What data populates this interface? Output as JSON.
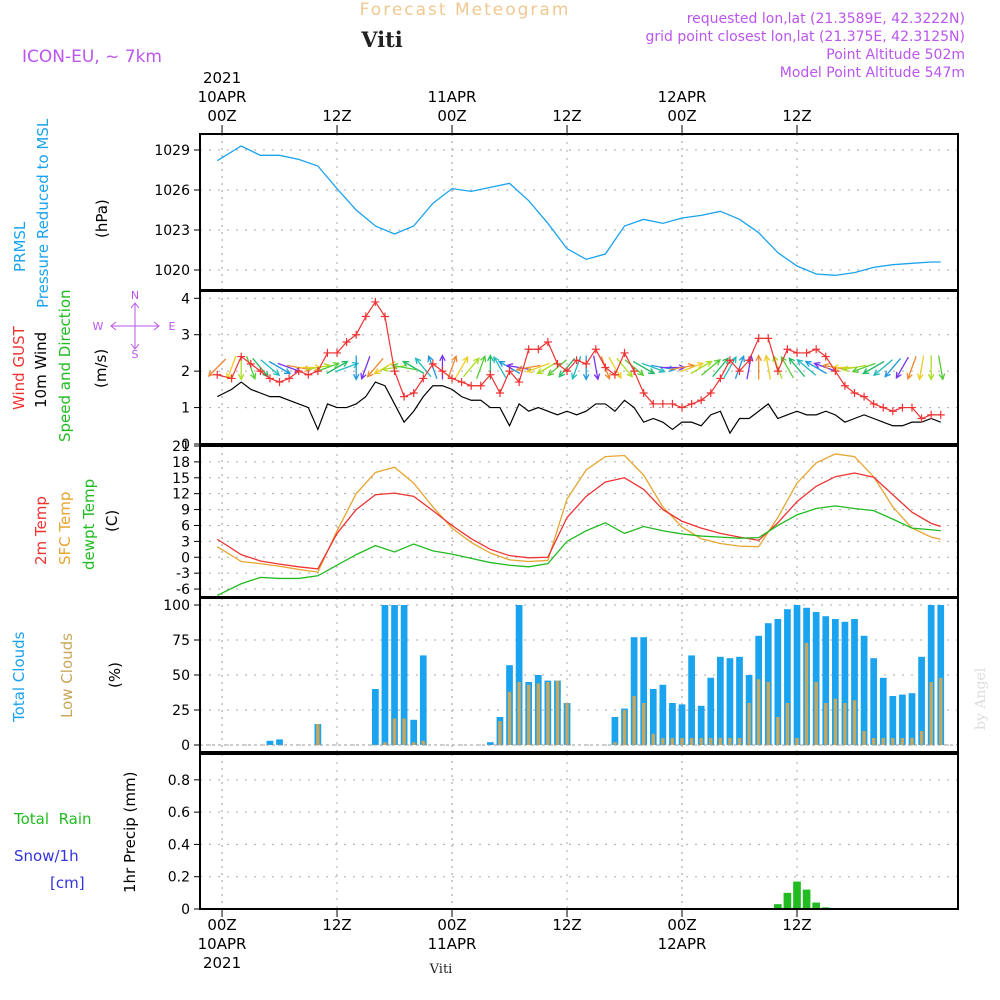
{
  "header": {
    "main_title": "Forecast Meteogram",
    "location": "Viti",
    "model": "ICON-EU, ~ 7km",
    "info_lines": [
      "requested lon,lat (21.3589E, 42.3222N)",
      "grid point closest lon,lat (21.375E, 42.3125N)",
      "Point Altitude 502m",
      "Model Point Altitude 547m"
    ],
    "bottom_label": "Viti",
    "watermark": "by Angel"
  },
  "time_axis": {
    "tick_labels": [
      "00Z",
      "12Z",
      "00Z",
      "12Z",
      "00Z",
      "12Z"
    ],
    "top_date_labels": [
      {
        "lines": [
          "2021",
          "10APR",
          "00Z"
        ]
      },
      {
        "lines": [
          "12Z"
        ]
      },
      {
        "lines": [
          "11APR",
          "00Z"
        ]
      },
      {
        "lines": [
          "12Z"
        ]
      },
      {
        "lines": [
          "12APR",
          "00Z"
        ]
      },
      {
        "lines": [
          "12Z"
        ]
      }
    ],
    "bottom_date_labels": [
      {
        "lines": [
          "00Z",
          "10APR",
          "2021"
        ]
      },
      {
        "lines": [
          "12Z"
        ]
      },
      {
        "lines": [
          "00Z",
          "11APR"
        ]
      },
      {
        "lines": [
          "12Z"
        ]
      },
      {
        "lines": [
          "00Z",
          "12APR"
        ]
      },
      {
        "lines": [
          "12Z"
        ]
      }
    ]
  },
  "colors": {
    "pressure": "#1aa3ee",
    "gust": "#ee3333",
    "wind10m": "#000000",
    "wind_dir": "#22bb22",
    "temp2m": "#ee3333",
    "sfc_temp": "#e6a530",
    "dewpoint": "#22bb22",
    "total_clouds": "#1aa3ee",
    "low_clouds": "#c8a65a",
    "rain": "#22bb22",
    "snow": "#3333dd",
    "header_purple": "#bb55ee",
    "header_gold": "#f0c890"
  },
  "chart_data": [
    {
      "type": "line",
      "panel": "pressure",
      "labels": [
        "PRMSL",
        "Pressure Reduced to MSL",
        "(hPa)"
      ],
      "yticks": [
        "1029",
        "1026",
        "1023",
        "1020"
      ],
      "ylim": [
        1018.5,
        1030.2
      ],
      "x": [
        -0.5,
        2,
        4,
        6,
        8,
        10,
        12,
        14,
        16,
        18,
        20,
        22,
        24,
        26,
        28,
        30,
        32,
        34,
        36,
        38,
        40,
        42,
        44,
        46,
        48,
        50,
        52,
        54,
        56,
        58,
        60,
        62,
        64,
        66,
        68,
        70,
        72,
        74,
        75
      ],
      "series": [
        {
          "name": "PRMSL",
          "values": [
            1028.2,
            1029.3,
            1028.6,
            1028.6,
            1028.3,
            1027.8,
            1026.1,
            1024.5,
            1023.3,
            1022.7,
            1023.3,
            1025.0,
            1026.1,
            1025.9,
            1026.2,
            1026.5,
            1025.2,
            1023.5,
            1021.6,
            1020.8,
            1021.2,
            1023.3,
            1023.8,
            1023.5,
            1023.9,
            1024.1,
            1024.4,
            1023.8,
            1022.8,
            1021.3,
            1020.3,
            1019.7,
            1019.6,
            1019.8,
            1020.2,
            1020.4,
            1020.5,
            1020.6,
            1020.6
          ]
        }
      ]
    },
    {
      "type": "line",
      "panel": "wind",
      "labels": [
        "Wind GUST",
        "10m Wind",
        "Speed and Direction",
        "(m/s)"
      ],
      "compass": [
        "N",
        "W",
        "E",
        "S"
      ],
      "yticks": [
        "4",
        "3",
        "2",
        "1",
        "0"
      ],
      "ylim": [
        0,
        4.2
      ],
      "x": [
        -0.5,
        1,
        2,
        3,
        4,
        5,
        6,
        7,
        8,
        9,
        10,
        11,
        12,
        13,
        14,
        15,
        16,
        17,
        18,
        19,
        20,
        21,
        22,
        23,
        24,
        25,
        26,
        27,
        28,
        29,
        30,
        31,
        32,
        33,
        34,
        35,
        36,
        37,
        38,
        39,
        40,
        41,
        42,
        43,
        44,
        45,
        46,
        47,
        48,
        49,
        50,
        51,
        52,
        53,
        54,
        55,
        56,
        57,
        58,
        59,
        60,
        61,
        62,
        63,
        64,
        65,
        66,
        67,
        68,
        69,
        70,
        71,
        72,
        73,
        74,
        75
      ],
      "series": [
        {
          "name": "Wind GUST",
          "values": [
            1.9,
            1.8,
            2.4,
            2.2,
            2.0,
            1.8,
            1.7,
            1.8,
            2.0,
            1.9,
            2.0,
            2.5,
            2.5,
            2.8,
            3.0,
            3.5,
            3.9,
            3.5,
            2.0,
            1.3,
            1.4,
            1.8,
            2.2,
            2.0,
            1.8,
            1.7,
            1.6,
            1.6,
            1.9,
            1.4,
            2.0,
            1.7,
            2.6,
            2.6,
            2.8,
            2.2,
            2.0,
            2.3,
            2.2,
            2.6,
            2.1,
            1.9,
            2.5,
            2.0,
            1.4,
            1.1,
            1.1,
            1.1,
            1.0,
            1.1,
            1.2,
            1.4,
            1.8,
            2.3,
            2.0,
            2.3,
            2.9,
            2.9,
            2.0,
            2.6,
            2.5,
            2.5,
            2.6,
            2.4,
            2.0,
            1.6,
            1.4,
            1.3,
            1.1,
            1.0,
            0.9,
            1.0,
            1.0,
            0.7,
            0.8,
            0.8
          ]
        },
        {
          "name": "10m Wind",
          "values": [
            1.3,
            1.5,
            1.7,
            1.5,
            1.4,
            1.3,
            1.3,
            1.2,
            1.1,
            1.0,
            0.4,
            1.1,
            1.0,
            1.0,
            1.1,
            1.3,
            1.7,
            1.6,
            1.1,
            0.6,
            0.9,
            1.3,
            1.6,
            1.6,
            1.5,
            1.3,
            1.2,
            1.2,
            1.0,
            1.0,
            0.5,
            1.1,
            0.9,
            1.0,
            0.9,
            0.8,
            0.9,
            0.8,
            0.9,
            1.1,
            1.1,
            0.9,
            1.2,
            1.0,
            0.6,
            0.7,
            0.6,
            0.4,
            0.6,
            0.6,
            0.5,
            0.8,
            0.9,
            0.3,
            0.7,
            0.7,
            0.9,
            1.1,
            0.7,
            0.8,
            0.9,
            0.8,
            0.8,
            0.9,
            0.8,
            0.6,
            0.7,
            0.8,
            0.7,
            0.6,
            0.5,
            0.5,
            0.6,
            0.6,
            0.7,
            0.6
          ]
        }
      ]
    },
    {
      "type": "line",
      "panel": "temperature",
      "labels": [
        "2m Temp",
        "SFC Temp",
        "dewpt Temp",
        "(C)"
      ],
      "yticks": [
        "21",
        "18",
        "15",
        "12",
        "9",
        "6",
        "3",
        "0",
        "-3",
        "-6"
      ],
      "ylim": [
        -7.5,
        21
      ],
      "x": [
        -0.5,
        2,
        4,
        6,
        8,
        10,
        12,
        14,
        16,
        18,
        20,
        22,
        24,
        26,
        28,
        30,
        32,
        34,
        36,
        38,
        40,
        42,
        44,
        46,
        48,
        50,
        52,
        54,
        56,
        58,
        60,
        62,
        64,
        66,
        68,
        70,
        72,
        74,
        75
      ],
      "series": [
        {
          "name": "2m Temp",
          "values": [
            3.4,
            0.5,
            -0.7,
            -1.3,
            -1.8,
            -2.2,
            4.5,
            9.0,
            11.8,
            12.1,
            11.5,
            8.8,
            6.0,
            3.5,
            1.5,
            0.3,
            -0.1,
            0.0,
            7.5,
            11.5,
            14.2,
            15.0,
            12.8,
            9.0,
            6.8,
            5.5,
            4.5,
            3.8,
            3.2,
            6.5,
            10.5,
            13.4,
            15.2,
            15.9,
            15.1,
            11.8,
            8.5,
            6.4,
            5.8
          ]
        },
        {
          "name": "SFC Temp",
          "values": [
            2.0,
            -0.8,
            -1.2,
            -1.7,
            -2.3,
            -2.8,
            5.0,
            12.0,
            16.0,
            17.0,
            14.0,
            9.5,
            5.5,
            2.8,
            0.8,
            -0.5,
            -0.8,
            -0.6,
            11.0,
            16.5,
            19.0,
            19.2,
            15.5,
            9.5,
            5.7,
            3.5,
            2.6,
            2.1,
            2.0,
            7.5,
            14.0,
            17.8,
            19.5,
            19.0,
            15.2,
            9.5,
            5.5,
            3.8,
            3.4
          ]
        },
        {
          "name": "dewpt Temp",
          "values": [
            -7.2,
            -5.0,
            -3.8,
            -4.0,
            -4.0,
            -3.5,
            -1.5,
            0.5,
            2.2,
            1.0,
            2.5,
            1.2,
            0.6,
            -0.2,
            -1.0,
            -1.5,
            -1.8,
            -1.2,
            3.0,
            5.0,
            6.5,
            4.5,
            5.8,
            5.0,
            4.4,
            4.0,
            3.8,
            3.6,
            3.7,
            6.0,
            8.0,
            9.2,
            9.7,
            9.2,
            8.8,
            7.2,
            5.5,
            5.2,
            5.0
          ]
        }
      ]
    },
    {
      "type": "bar",
      "panel": "clouds",
      "labels": [
        "Total Clouds",
        "Low Clouds",
        "(%)"
      ],
      "yticks": [
        "100",
        "75",
        "50",
        "25",
        "0"
      ],
      "ylim": [
        -5,
        105
      ],
      "x": [
        0,
        1,
        2,
        3,
        4,
        5,
        6,
        7,
        8,
        9,
        10,
        11,
        12,
        13,
        14,
        15,
        16,
        17,
        18,
        19,
        20,
        21,
        22,
        23,
        24,
        25,
        26,
        27,
        28,
        29,
        30,
        31,
        32,
        33,
        34,
        35,
        36,
        37,
        38,
        39,
        40,
        41,
        42,
        43,
        44,
        45,
        46,
        47,
        48,
        49,
        50,
        51,
        52,
        53,
        54,
        55,
        56,
        57,
        58,
        59,
        60,
        61,
        62,
        63,
        64,
        65,
        66,
        67,
        68,
        69,
        70,
        71,
        72,
        73,
        74,
        75
      ],
      "series": [
        {
          "name": "Total Clouds",
          "values": [
            0,
            0,
            0,
            0,
            0,
            3,
            4,
            0,
            0,
            0,
            15,
            0,
            0,
            0,
            0,
            0,
            40,
            100,
            100,
            100,
            18,
            64,
            0,
            0,
            0,
            0,
            0,
            0,
            2,
            20,
            57,
            100,
            45,
            50,
            46,
            46,
            30,
            0,
            0,
            0,
            0,
            20,
            26,
            77,
            77,
            40,
            43,
            30,
            29,
            64,
            28,
            48,
            63,
            62,
            63,
            50,
            78,
            87,
            90,
            97,
            100,
            98,
            95,
            92,
            90,
            88,
            90,
            78,
            62,
            48,
            35,
            36,
            37,
            63,
            100,
            100
          ]
        },
        {
          "name": "Low Clouds",
          "values": [
            0,
            0,
            0,
            0,
            0,
            0,
            0,
            0,
            0,
            0,
            15,
            0,
            0,
            0,
            0,
            0,
            0,
            2,
            19,
            19,
            2,
            3,
            0,
            0,
            0,
            0,
            0,
            0,
            0,
            17,
            38,
            45,
            43,
            44,
            45,
            46,
            30,
            0,
            0,
            0,
            0,
            2,
            25,
            35,
            30,
            8,
            5,
            5,
            5,
            5,
            5,
            5,
            5,
            5,
            5,
            30,
            47,
            45,
            20,
            30,
            5,
            73,
            45,
            30,
            33,
            30,
            32,
            10,
            5,
            5,
            5,
            5,
            5,
            10,
            45,
            48
          ]
        }
      ]
    },
    {
      "type": "bar",
      "panel": "precip",
      "labels": [
        "Total  Rain",
        "Snow/1h",
        "[cm]",
        "1hr Precip (mm)"
      ],
      "yticks": [
        "0.8",
        "0.6",
        "0.4",
        "0.2",
        "0"
      ],
      "ylim": [
        0,
        0.96
      ],
      "x": [
        58,
        59,
        60,
        61,
        62,
        63
      ],
      "series": [
        {
          "name": "Total Rain",
          "values": [
            0.03,
            0.1,
            0.17,
            0.12,
            0.04,
            0.01
          ]
        }
      ]
    }
  ]
}
